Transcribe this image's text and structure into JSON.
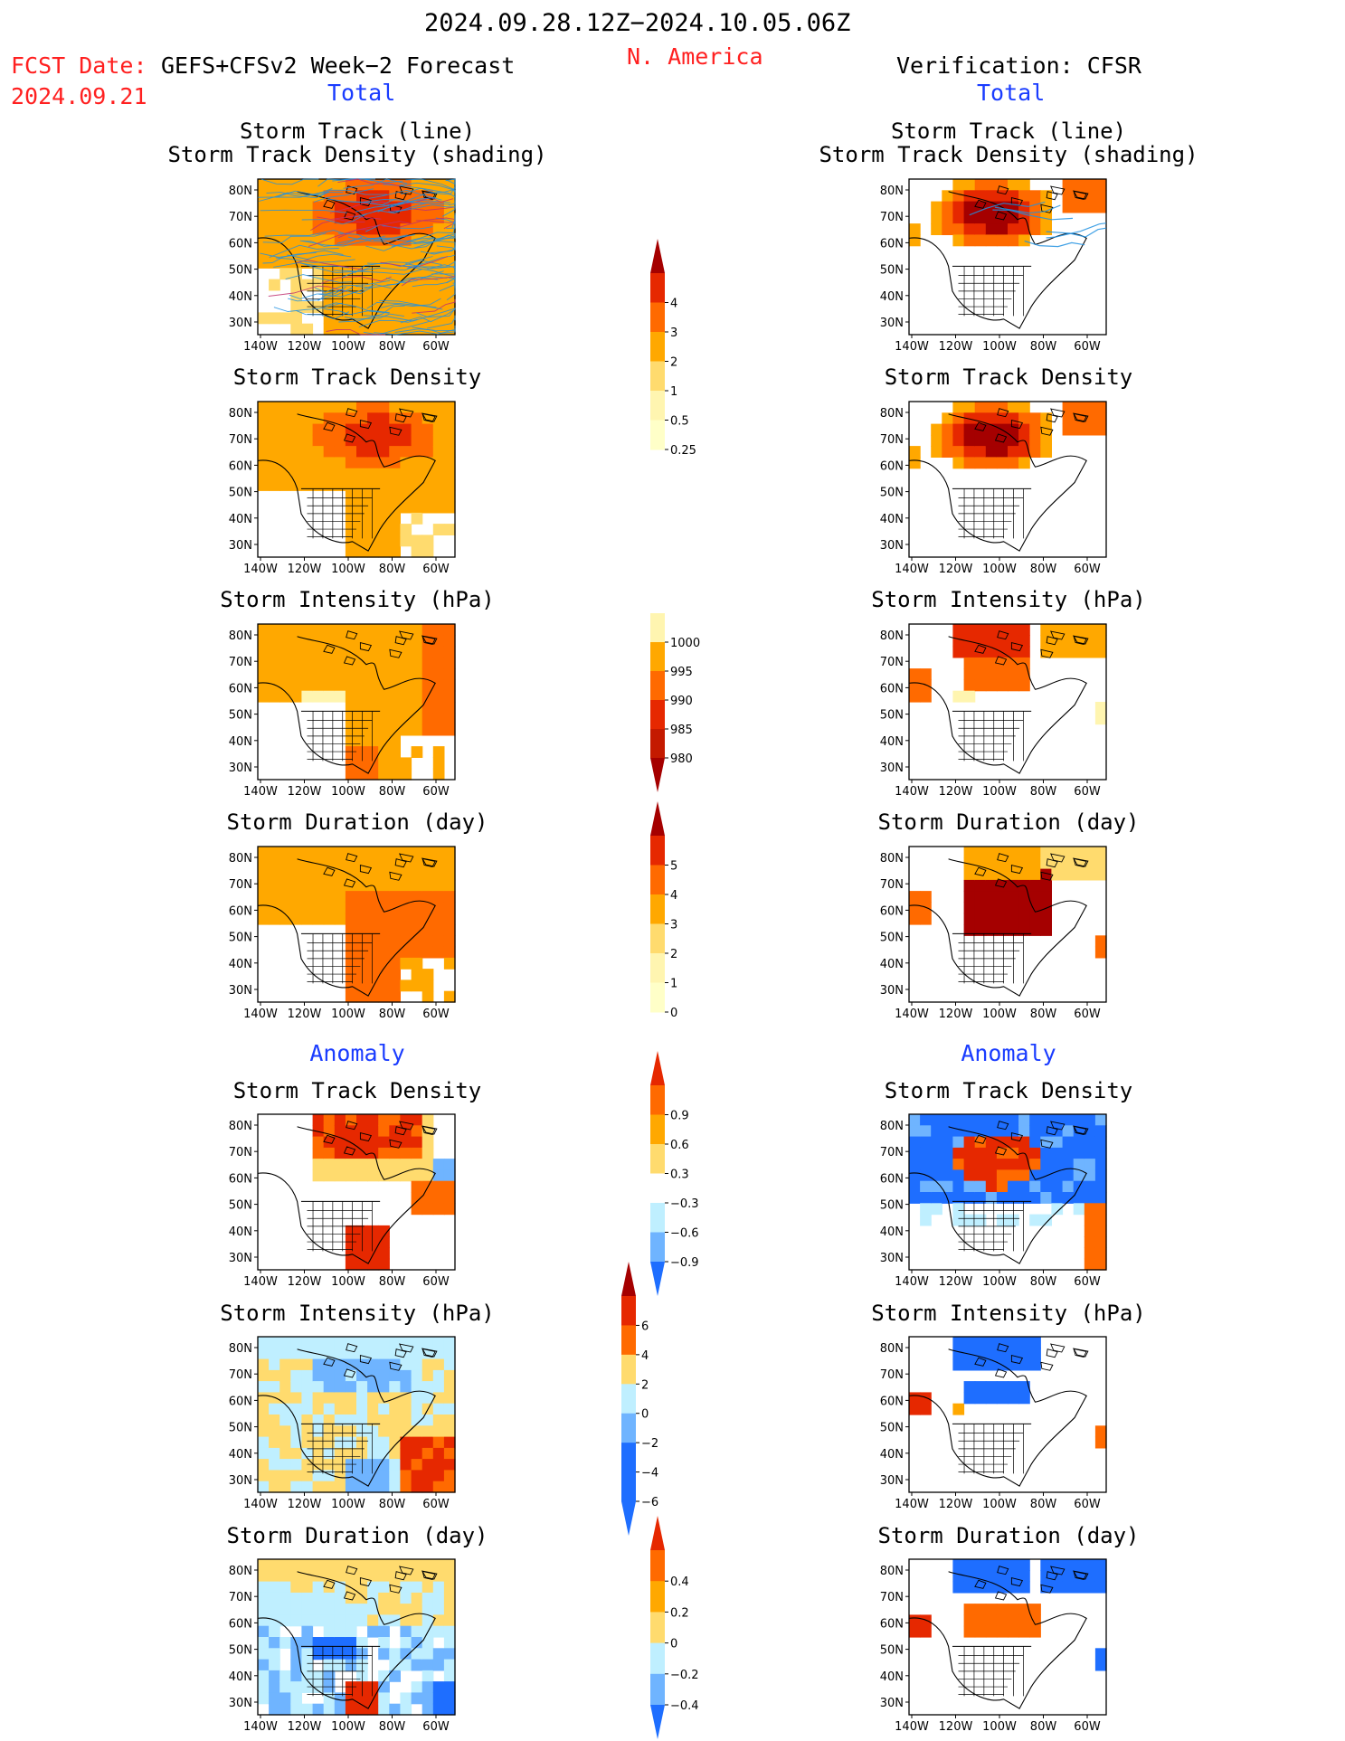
{
  "header": {
    "period": "2024.09.28.12Z−2024.10.05.06Z",
    "region": "N. America",
    "fcst_label": "FCST Date:",
    "fcst_model": "GEFS+CFSv2 Week−2 Forecast",
    "fcst_date": "2024.09.21",
    "verification": "Verification: CFSR",
    "left_section": "Total",
    "right_section": "Total"
  },
  "sections": {
    "total": "Total",
    "anomaly": "Anomaly"
  },
  "panel_titles": {
    "track_line": "Storm Track (line)",
    "track_shading": "Storm Track Density (shading)",
    "density": "Storm Track Density",
    "intensity": "Storm Intensity (hPa)",
    "duration": "Storm Duration (day)"
  },
  "map_axes": {
    "lat_labels": [
      "80N",
      "70N",
      "60N",
      "50N",
      "40N",
      "30N"
    ],
    "lon_labels": [
      "140W",
      "120W",
      "100W",
      "80W",
      "60W"
    ]
  },
  "colors": {
    "very_light_yellow": "#fff5b0",
    "light_yellow": "#ffdb6e",
    "orange": "#ffa800",
    "dark_orange": "#ff6a00",
    "red": "#e62800",
    "dark_red": "#a50000",
    "light_blue": "#bfefff",
    "mid_blue": "#6fb4ff",
    "blue": "#1e6eff",
    "dark_blue": "#0a3ce0",
    "track_line": "#2090e0"
  },
  "chart_data": [
    {
      "type": "heatmap",
      "name": "colorbar-total-density",
      "levels": [
        "0.25",
        "0.5",
        "1",
        "2",
        "3",
        "4"
      ],
      "units": ""
    },
    {
      "type": "heatmap",
      "name": "colorbar-total-intensity",
      "levels": [
        "1000",
        "995",
        "990",
        "985",
        "980"
      ],
      "units": "hPa"
    },
    {
      "type": "heatmap",
      "name": "colorbar-total-duration",
      "levels": [
        "0",
        "1",
        "2",
        "3",
        "4",
        "5"
      ],
      "units": "day"
    },
    {
      "type": "heatmap",
      "name": "colorbar-anomaly-density",
      "levels": [
        "0.9",
        "0.6",
        "0.3",
        "−0.3",
        "−0.6",
        "−0.9"
      ]
    },
    {
      "type": "heatmap",
      "name": "colorbar-anomaly-intensity",
      "levels": [
        "6",
        "4",
        "2",
        "0",
        "−2",
        "−4",
        "−6"
      ]
    },
    {
      "type": "heatmap",
      "name": "colorbar-anomaly-duration",
      "levels": [
        "0.4",
        "0.2",
        "0",
        "−0.2",
        "−0.4"
      ]
    }
  ]
}
